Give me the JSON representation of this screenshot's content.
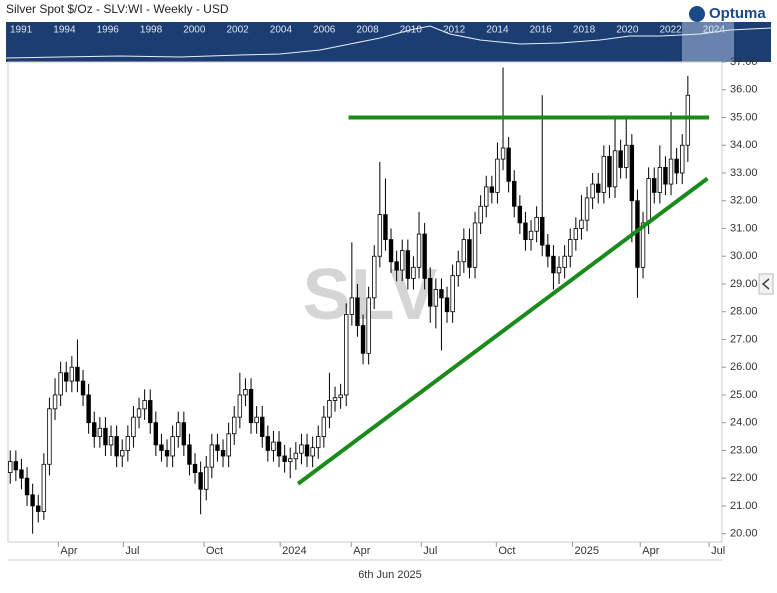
{
  "title": "Silver Spot $/Oz - SLV:WI - Weekly - USD",
  "logo": "Optuma",
  "navigator": {
    "years": [
      "1991",
      "1994",
      "1996",
      "1998",
      "2000",
      "2002",
      "2004",
      "2006",
      "2008",
      "2010",
      "2012",
      "2014",
      "2016",
      "2018",
      "2020",
      "2022",
      "2024"
    ]
  },
  "watermark": "SLV",
  "footer": "6th Jun 2025",
  "chart_data": {
    "type": "candlestick",
    "ylim": [
      19.7,
      37.0
    ],
    "yticks": [
      {
        "value": 20,
        "label": "20.00"
      },
      {
        "value": 21,
        "label": "21.00"
      },
      {
        "value": 22,
        "label": "22.00"
      },
      {
        "value": 23,
        "label": "23.00"
      },
      {
        "value": 24,
        "label": "24.00"
      },
      {
        "value": 25,
        "label": "25.00"
      },
      {
        "value": 26,
        "label": "26.00"
      },
      {
        "value": 27,
        "label": "27.00"
      },
      {
        "value": 28,
        "label": "28.00"
      },
      {
        "value": 29,
        "label": "29.00"
      },
      {
        "value": 30,
        "label": "30.00"
      },
      {
        "value": 31,
        "label": "31.00"
      },
      {
        "value": 32,
        "label": "32.00"
      },
      {
        "value": 33,
        "label": "33.00"
      },
      {
        "value": 34,
        "label": "34.00"
      },
      {
        "value": 35,
        "label": "35.00"
      },
      {
        "value": 36,
        "label": "36.00"
      },
      {
        "value": 37,
        "label": "37.00"
      }
    ],
    "xlim": [
      -0.4,
      127.1
    ],
    "xticks": [
      {
        "value": 8.6,
        "label": "Apr"
      },
      {
        "value": 20.2,
        "label": "Jul"
      },
      {
        "value": 34.6,
        "label": "Oct"
      },
      {
        "value": 48.2,
        "label": "2024"
      },
      {
        "value": 60.9,
        "label": "Apr"
      },
      {
        "value": 73.4,
        "label": "Jul"
      },
      {
        "value": 86.8,
        "label": "Oct"
      },
      {
        "value": 100.4,
        "label": "2025"
      },
      {
        "value": 112.5,
        "label": "Apr"
      },
      {
        "value": 124.8,
        "label": "Jul"
      }
    ],
    "up_color": "#ffffff",
    "down_color": "#000000",
    "open": [
      22.2,
      22.6,
      22.3,
      22.0,
      21.4,
      21.0,
      20.8,
      22.5,
      24.5,
      25.0,
      25.8,
      25.5,
      26.0,
      25.5,
      25.0,
      24.0,
      23.5,
      23.8,
      23.2,
      23.5,
      22.8,
      23.0,
      23.5,
      24.2,
      24.5,
      24.8,
      24.0,
      23.2,
      23.0,
      22.8,
      23.5,
      24.0,
      23.2,
      22.5,
      22.2,
      21.6,
      22.4,
      23.2,
      23.0,
      22.8,
      23.6,
      24.2,
      25.0,
      25.2,
      24.0,
      24.2,
      23.5,
      23.0,
      23.3,
      22.8,
      22.6,
      22.7,
      22.9,
      23.2,
      22.8,
      23.1,
      23.5,
      24.2,
      24.8,
      24.9,
      25.0,
      27.9,
      28.5,
      27.5,
      26.5,
      28.5,
      30.0,
      31.5,
      30.6,
      29.8,
      29.5,
      30.2,
      29.2,
      29.6,
      30.8,
      29.2,
      28.2,
      28.8,
      28.5,
      28.0,
      29.3,
      29.8,
      30.6,
      29.6,
      31.2,
      31.8,
      32.5,
      32.3,
      33.5,
      33.9,
      32.7,
      31.8,
      31.2,
      30.6,
      30.9,
      31.4,
      30.4,
      30.0,
      29.4,
      29.6,
      30.0,
      30.6,
      31.0,
      31.3,
      32.1,
      32.6,
      32.3,
      33.6,
      32.5,
      33.8,
      33.2,
      34.0,
      32.0,
      29.6,
      31.2,
      32.8,
      32.3,
      33.2,
      32.6,
      33.5,
      33.0,
      34.0
    ],
    "high": [
      23.0,
      23.0,
      22.7,
      22.4,
      21.8,
      21.4,
      22.9,
      24.9,
      25.6,
      26.2,
      26.2,
      26.4,
      27.0,
      25.9,
      25.4,
      24.4,
      24.2,
      24.2,
      23.9,
      23.9,
      23.4,
      23.9,
      24.6,
      24.9,
      25.2,
      25.2,
      24.4,
      23.6,
      23.4,
      23.9,
      24.4,
      24.4,
      23.6,
      22.9,
      22.6,
      22.8,
      23.6,
      23.6,
      23.4,
      24.0,
      24.6,
      25.8,
      25.6,
      25.6,
      24.6,
      24.6,
      23.9,
      23.7,
      23.7,
      23.2,
      23.1,
      23.3,
      23.6,
      23.6,
      23.5,
      23.9,
      24.6,
      25.8,
      25.3,
      25.4,
      28.3,
      30.5,
      29.0,
      27.9,
      28.9,
      30.4,
      33.4,
      32.8,
      31.0,
      30.2,
      30.6,
      30.6,
      30.0,
      31.6,
      31.2,
      29.6,
      29.2,
      29.2,
      28.9,
      29.7,
      30.2,
      31.0,
      31.0,
      31.6,
      32.2,
      32.9,
      32.9,
      34.1,
      36.8,
      34.3,
      33.1,
      32.2,
      31.6,
      31.3,
      31.8,
      35.8,
      30.8,
      30.4,
      30.0,
      30.4,
      31.0,
      31.4,
      32.2,
      32.5,
      33.0,
      33.0,
      34.0,
      34.0,
      35.0,
      34.2,
      35.0,
      34.4,
      32.4,
      31.6,
      33.2,
      33.2,
      34.0,
      33.6,
      35.2,
      33.9,
      34.4,
      36.5
    ],
    "low": [
      21.8,
      21.9,
      21.6,
      21.0,
      20.0,
      20.4,
      20.5,
      22.1,
      24.1,
      24.6,
      25.1,
      25.1,
      25.1,
      24.6,
      23.6,
      23.1,
      23.1,
      22.8,
      22.8,
      22.4,
      22.4,
      22.6,
      23.1,
      23.8,
      24.1,
      23.6,
      22.8,
      22.6,
      22.4,
      22.4,
      23.1,
      22.8,
      22.1,
      21.8,
      20.7,
      21.2,
      22.0,
      22.6,
      22.4,
      22.4,
      23.2,
      23.8,
      24.6,
      23.6,
      23.6,
      23.1,
      22.6,
      22.6,
      22.4,
      22.2,
      22.0,
      22.3,
      22.5,
      22.4,
      22.4,
      22.7,
      23.1,
      23.8,
      24.4,
      24.5,
      24.6,
      27.5,
      27.1,
      26.1,
      26.1,
      28.1,
      29.6,
      30.2,
      29.4,
      29.1,
      29.1,
      28.8,
      28.8,
      29.2,
      28.8,
      27.6,
      27.4,
      26.6,
      27.6,
      27.6,
      28.9,
      29.4,
      29.2,
      29.2,
      30.8,
      31.4,
      31.9,
      31.9,
      33.1,
      32.3,
      31.4,
      30.8,
      30.2,
      30.2,
      30.5,
      30.0,
      29.6,
      28.8,
      29.0,
      29.2,
      29.6,
      30.2,
      30.6,
      30.9,
      31.7,
      31.9,
      31.9,
      32.1,
      32.1,
      32.8,
      32.8,
      30.5,
      28.5,
      29.2,
      30.8,
      31.9,
      31.9,
      32.2,
      32.2,
      32.6,
      32.6,
      33.4
    ],
    "close": [
      22.6,
      22.3,
      22.0,
      21.4,
      21.0,
      20.8,
      22.5,
      24.5,
      25.0,
      25.8,
      25.5,
      26.0,
      25.5,
      25.0,
      24.0,
      23.5,
      23.8,
      23.2,
      23.5,
      22.8,
      23.0,
      23.5,
      24.2,
      24.5,
      24.8,
      24.0,
      23.2,
      23.0,
      22.8,
      23.5,
      24.0,
      23.2,
      22.5,
      22.2,
      21.6,
      22.4,
      23.2,
      23.0,
      22.8,
      23.6,
      24.2,
      25.0,
      25.2,
      24.0,
      24.2,
      23.5,
      23.0,
      23.3,
      22.8,
      22.6,
      22.7,
      22.9,
      23.2,
      22.8,
      23.1,
      23.5,
      24.2,
      24.8,
      24.9,
      25.0,
      27.9,
      28.5,
      27.5,
      26.5,
      28.5,
      30.0,
      31.5,
      30.6,
      29.8,
      29.5,
      30.2,
      29.2,
      29.6,
      30.8,
      29.2,
      28.2,
      28.8,
      28.5,
      28.0,
      29.3,
      29.8,
      30.6,
      29.6,
      31.2,
      31.8,
      32.5,
      32.3,
      33.5,
      33.9,
      32.7,
      31.8,
      31.2,
      30.6,
      30.9,
      31.4,
      30.4,
      30.0,
      29.4,
      29.6,
      30.0,
      30.6,
      31.0,
      31.3,
      32.1,
      32.6,
      32.3,
      33.6,
      32.5,
      33.8,
      33.2,
      34.0,
      32.0,
      29.6,
      31.2,
      32.8,
      32.3,
      33.2,
      32.6,
      33.5,
      33.0,
      34.0,
      35.8
    ],
    "trendlines": [
      {
        "x": [
          60.4,
          124.8
        ],
        "y": [
          35.0,
          35.0
        ],
        "color": "#1a8a1a"
      },
      {
        "x": [
          51.4,
          124.5
        ],
        "y": [
          21.8,
          32.8
        ],
        "color": "#1a8a1a"
      }
    ]
  }
}
